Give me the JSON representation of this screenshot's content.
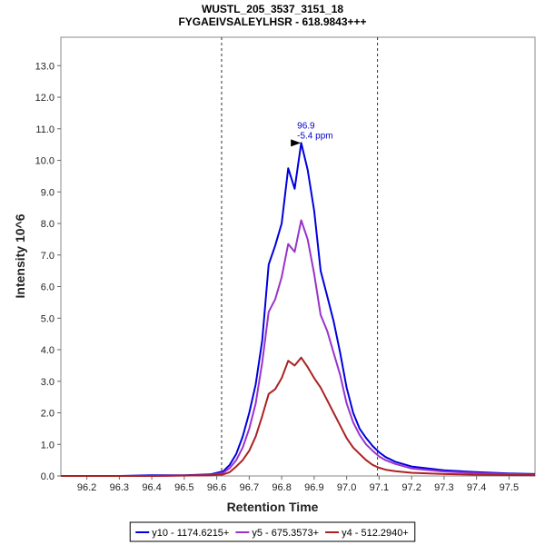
{
  "chart_data": {
    "type": "line",
    "title": "WUSTL_205_3537_3151_18",
    "subtitle": "FYGAEIVSALEYLHSR - 618.9843+++",
    "xlabel": "Retention Time",
    "ylabel": "Intensity 10^6",
    "xlim": [
      96.12,
      97.58
    ],
    "ylim": [
      0,
      13.9
    ],
    "x_ticks": [
      "96.2",
      "96.3",
      "96.4",
      "96.5",
      "96.6",
      "96.7",
      "96.8",
      "96.9",
      "97.0",
      "97.1",
      "97.2",
      "97.3",
      "97.4",
      "97.5"
    ],
    "y_ticks": [
      "0.0",
      "1.0",
      "2.0",
      "3.0",
      "4.0",
      "5.0",
      "6.0",
      "7.0",
      "8.0",
      "9.0",
      "10.0",
      "11.0",
      "12.0",
      "13.0"
    ],
    "integration_bounds": [
      96.615,
      97.095
    ],
    "annotation": {
      "x": 96.87,
      "y": 10.55,
      "label": "96.9",
      "sublabel": "-5.4 ppm"
    },
    "legend_position": "bottom",
    "series": [
      {
        "name": "y10 - 1174.6215+",
        "color": "#0000dd",
        "points": [
          [
            96.12,
            0.0
          ],
          [
            96.3,
            0.0
          ],
          [
            96.4,
            0.02
          ],
          [
            96.5,
            0.02
          ],
          [
            96.58,
            0.05
          ],
          [
            96.62,
            0.15
          ],
          [
            96.64,
            0.35
          ],
          [
            96.66,
            0.7
          ],
          [
            96.68,
            1.25
          ],
          [
            96.7,
            2.0
          ],
          [
            96.72,
            2.9
          ],
          [
            96.74,
            4.3
          ],
          [
            96.76,
            6.7
          ],
          [
            96.78,
            7.3
          ],
          [
            96.8,
            8.0
          ],
          [
            96.82,
            9.75
          ],
          [
            96.84,
            9.1
          ],
          [
            96.86,
            10.55
          ],
          [
            96.88,
            9.7
          ],
          [
            96.9,
            8.4
          ],
          [
            96.92,
            6.5
          ],
          [
            96.94,
            5.7
          ],
          [
            96.96,
            4.9
          ],
          [
            96.98,
            3.9
          ],
          [
            97.0,
            2.8
          ],
          [
            97.02,
            2.0
          ],
          [
            97.04,
            1.5
          ],
          [
            97.06,
            1.2
          ],
          [
            97.08,
            0.95
          ],
          [
            97.1,
            0.75
          ],
          [
            97.12,
            0.6
          ],
          [
            97.15,
            0.45
          ],
          [
            97.2,
            0.3
          ],
          [
            97.3,
            0.18
          ],
          [
            97.4,
            0.12
          ],
          [
            97.5,
            0.08
          ],
          [
            97.58,
            0.06
          ]
        ]
      },
      {
        "name": "y5 - 675.3573+",
        "color": "#9933cc",
        "points": [
          [
            96.12,
            0.0
          ],
          [
            96.4,
            0.0
          ],
          [
            96.58,
            0.03
          ],
          [
            96.62,
            0.1
          ],
          [
            96.64,
            0.25
          ],
          [
            96.66,
            0.5
          ],
          [
            96.68,
            0.9
          ],
          [
            96.7,
            1.5
          ],
          [
            96.72,
            2.3
          ],
          [
            96.74,
            3.6
          ],
          [
            96.76,
            5.2
          ],
          [
            96.78,
            5.6
          ],
          [
            96.8,
            6.3
          ],
          [
            96.82,
            7.35
          ],
          [
            96.84,
            7.1
          ],
          [
            96.86,
            8.1
          ],
          [
            96.88,
            7.5
          ],
          [
            96.9,
            6.4
          ],
          [
            96.92,
            5.1
          ],
          [
            96.94,
            4.6
          ],
          [
            96.96,
            3.9
          ],
          [
            96.98,
            3.2
          ],
          [
            97.0,
            2.3
          ],
          [
            97.02,
            1.7
          ],
          [
            97.04,
            1.3
          ],
          [
            97.06,
            1.0
          ],
          [
            97.08,
            0.8
          ],
          [
            97.1,
            0.62
          ],
          [
            97.12,
            0.5
          ],
          [
            97.15,
            0.38
          ],
          [
            97.2,
            0.24
          ],
          [
            97.3,
            0.14
          ],
          [
            97.4,
            0.09
          ],
          [
            97.5,
            0.06
          ],
          [
            97.58,
            0.04
          ]
        ]
      },
      {
        "name": "y4 - 512.2940+",
        "color": "#aa2222",
        "points": [
          [
            96.12,
            0.0
          ],
          [
            96.4,
            0.0
          ],
          [
            96.58,
            0.02
          ],
          [
            96.62,
            0.05
          ],
          [
            96.64,
            0.12
          ],
          [
            96.66,
            0.3
          ],
          [
            96.68,
            0.5
          ],
          [
            96.7,
            0.8
          ],
          [
            96.72,
            1.25
          ],
          [
            96.74,
            1.9
          ],
          [
            96.76,
            2.6
          ],
          [
            96.78,
            2.75
          ],
          [
            96.8,
            3.1
          ],
          [
            96.82,
            3.65
          ],
          [
            96.84,
            3.5
          ],
          [
            96.86,
            3.75
          ],
          [
            96.88,
            3.45
          ],
          [
            96.9,
            3.1
          ],
          [
            96.92,
            2.8
          ],
          [
            96.94,
            2.4
          ],
          [
            96.96,
            2.0
          ],
          [
            96.98,
            1.6
          ],
          [
            97.0,
            1.2
          ],
          [
            97.02,
            0.9
          ],
          [
            97.04,
            0.7
          ],
          [
            97.06,
            0.5
          ],
          [
            97.08,
            0.35
          ],
          [
            97.1,
            0.26
          ],
          [
            97.12,
            0.2
          ],
          [
            97.15,
            0.15
          ],
          [
            97.2,
            0.1
          ],
          [
            97.3,
            0.06
          ],
          [
            97.4,
            0.04
          ],
          [
            97.5,
            0.03
          ],
          [
            97.58,
            0.02
          ]
        ]
      }
    ]
  }
}
